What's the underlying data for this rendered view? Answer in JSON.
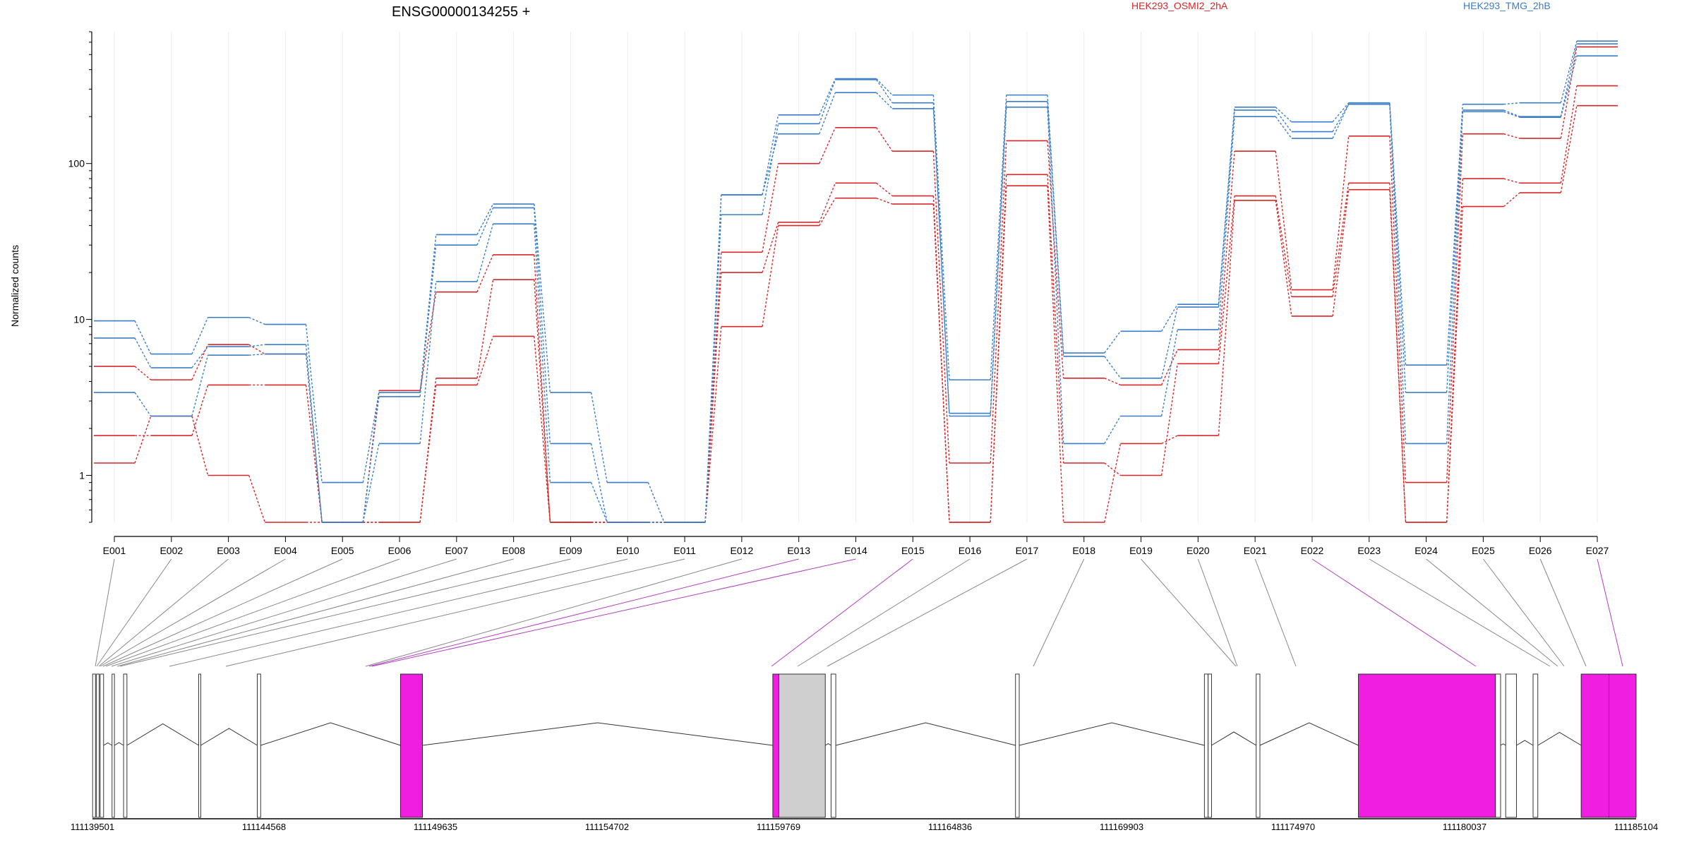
{
  "chart_data": {
    "type": "line",
    "title": "ENSG00000134255 +",
    "ylabel": "Normalized counts",
    "yscale": "log",
    "ylim": [
      0.5,
      700
    ],
    "yticks": [
      1,
      10,
      100
    ],
    "ytick_labels": [
      "1",
      "10",
      "100"
    ],
    "categories": [
      "E001",
      "E002",
      "E003",
      "E004",
      "E005",
      "E006",
      "E007",
      "E008",
      "E009",
      "E010",
      "E011",
      "E012",
      "E013",
      "E014",
      "E015",
      "E016",
      "E017",
      "E018",
      "E019",
      "E020",
      "E021",
      "E022",
      "E023",
      "E024",
      "E025",
      "E026",
      "E027"
    ],
    "legend": [
      {
        "name": "HEK293_OSMI2_2hA",
        "color": "#d62728"
      },
      {
        "name": "HEK293_TMG_2hB",
        "color": "#3a7dc9"
      }
    ],
    "series": [
      {
        "group": "HEK293_OSMI2_2hA",
        "color": "#d62728",
        "values": [
          5,
          4.1,
          6.9,
          6,
          0.5,
          3.5,
          15,
          26,
          0.5,
          0.5,
          0.5,
          27,
          100,
          170,
          120,
          1.2,
          140,
          4.2,
          3.8,
          6.4,
          120,
          15.5,
          150,
          0.9,
          155,
          145,
          560
        ]
      },
      {
        "group": "HEK293_OSMI2_2hA",
        "color": "#d62728",
        "values": [
          1.8,
          1.8,
          3.8,
          3.8,
          0.5,
          0.5,
          4.2,
          18,
          0.5,
          0.5,
          0.5,
          20,
          42,
          75,
          62,
          0.5,
          85,
          1.2,
          1.0,
          5.2,
          62,
          14,
          75,
          0.5,
          80,
          75,
          315
        ]
      },
      {
        "group": "HEK293_OSMI2_2hA",
        "color": "#d62728",
        "values": [
          1.2,
          2.4,
          1.0,
          0.5,
          0.5,
          0.5,
          3.8,
          7.8,
          0.5,
          0.5,
          0.5,
          9,
          40,
          60,
          55,
          0.5,
          72,
          0.5,
          1.6,
          1.8,
          58,
          10.5,
          68,
          0.5,
          53,
          65,
          235
        ]
      },
      {
        "group": "HEK293_TMG_2hB",
        "color": "#3a7dc9",
        "values": [
          9.8,
          6,
          10.3,
          9.3,
          0.9,
          3.4,
          35,
          55,
          3.4,
          0.9,
          0.5,
          63,
          205,
          350,
          275,
          4.1,
          275,
          6.1,
          8.4,
          12.5,
          230,
          185,
          245,
          5.1,
          240,
          245,
          610
        ]
      },
      {
        "group": "HEK293_TMG_2hB",
        "color": "#3a7dc9",
        "values": [
          7.6,
          4.9,
          6.7,
          6.9,
          0.5,
          3.2,
          30,
          52,
          1.6,
          0.5,
          0.5,
          47,
          180,
          345,
          245,
          2.5,
          250,
          5.8,
          4.2,
          12,
          220,
          160,
          240,
          3.4,
          220,
          200,
          585
        ]
      },
      {
        "group": "HEK293_TMG_2hB",
        "color": "#3a7dc9",
        "values": [
          3.4,
          2.4,
          5.9,
          6.0,
          0.5,
          1.6,
          17.5,
          41,
          0.9,
          0.5,
          0.5,
          63,
          155,
          285,
          225,
          2.4,
          230,
          1.6,
          2.4,
          8.6,
          200,
          145,
          240,
          1.6,
          215,
          198,
          490
        ]
      }
    ]
  },
  "gene_model": {
    "coordinate_labels": [
      "111139501",
      "111144568",
      "111149635",
      "111154702",
      "111159769",
      "111164836",
      "111169903",
      "111174970",
      "111180037",
      "111185104"
    ],
    "highlight_color": "#f01ee0",
    "exon_color": "#cfcfcf"
  }
}
